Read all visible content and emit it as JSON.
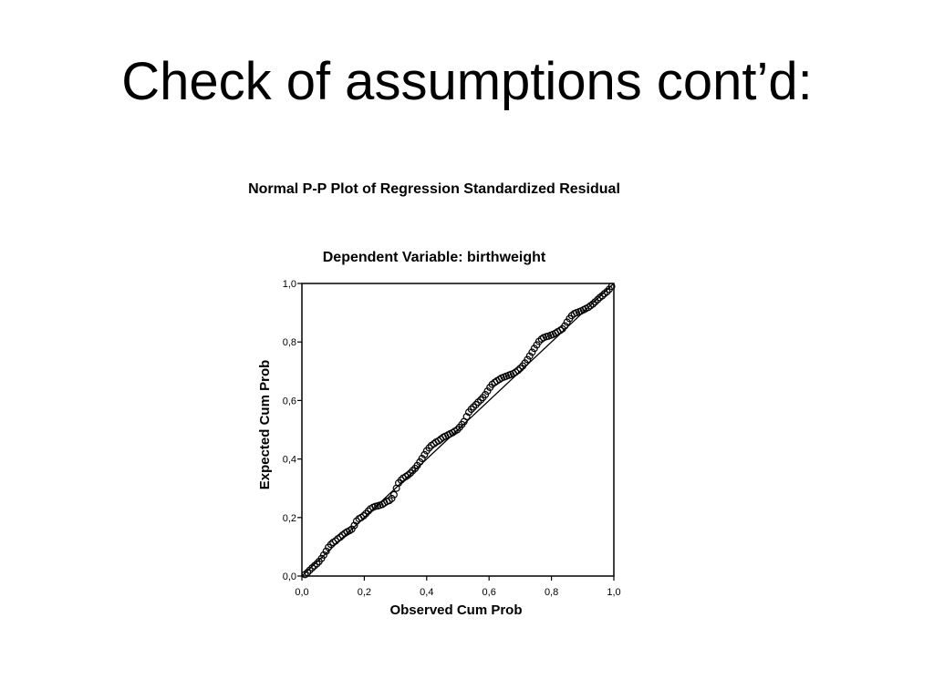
{
  "slide": {
    "title": "Check of assumptions cont’d:"
  },
  "chart_data": {
    "type": "scatter",
    "title": "Normal P-P Plot of Regression Standardized Residual",
    "subtitle": "Dependent Variable: birthweight",
    "xlabel": "Observed Cum Prob",
    "ylabel": "Expected Cum Prob",
    "xlim": [
      0,
      1
    ],
    "ylim": [
      0,
      1
    ],
    "x_ticks": [
      "0,0",
      "0,2",
      "0,4",
      "0,6",
      "0,8",
      "1,0"
    ],
    "y_ticks": [
      "0,0",
      "0,2",
      "0,4",
      "0,6",
      "0,8",
      "1,0"
    ],
    "reference_line": [
      [
        0,
        0
      ],
      [
        1,
        1
      ]
    ],
    "marker": "open-circle",
    "grid": false,
    "series": [
      {
        "points": [
          [
            0.01,
            0.005
          ],
          [
            0.018,
            0.012
          ],
          [
            0.025,
            0.02
          ],
          [
            0.033,
            0.028
          ],
          [
            0.04,
            0.035
          ],
          [
            0.048,
            0.042
          ],
          [
            0.055,
            0.05
          ],
          [
            0.063,
            0.06
          ],
          [
            0.07,
            0.072
          ],
          [
            0.078,
            0.085
          ],
          [
            0.085,
            0.098
          ],
          [
            0.093,
            0.108
          ],
          [
            0.1,
            0.115
          ],
          [
            0.108,
            0.12
          ],
          [
            0.115,
            0.127
          ],
          [
            0.123,
            0.133
          ],
          [
            0.13,
            0.14
          ],
          [
            0.138,
            0.146
          ],
          [
            0.145,
            0.151
          ],
          [
            0.153,
            0.155
          ],
          [
            0.16,
            0.16
          ],
          [
            0.168,
            0.173
          ],
          [
            0.175,
            0.188
          ],
          [
            0.183,
            0.196
          ],
          [
            0.19,
            0.2
          ],
          [
            0.198,
            0.206
          ],
          [
            0.205,
            0.213
          ],
          [
            0.213,
            0.222
          ],
          [
            0.22,
            0.23
          ],
          [
            0.228,
            0.235
          ],
          [
            0.235,
            0.238
          ],
          [
            0.243,
            0.24
          ],
          [
            0.25,
            0.242
          ],
          [
            0.258,
            0.245
          ],
          [
            0.265,
            0.25
          ],
          [
            0.273,
            0.255
          ],
          [
            0.28,
            0.258
          ],
          [
            0.288,
            0.265
          ],
          [
            0.295,
            0.278
          ],
          [
            0.303,
            0.3
          ],
          [
            0.31,
            0.318
          ],
          [
            0.318,
            0.328
          ],
          [
            0.325,
            0.335
          ],
          [
            0.333,
            0.34
          ],
          [
            0.34,
            0.345
          ],
          [
            0.348,
            0.352
          ],
          [
            0.355,
            0.36
          ],
          [
            0.363,
            0.368
          ],
          [
            0.37,
            0.378
          ],
          [
            0.378,
            0.39
          ],
          [
            0.385,
            0.402
          ],
          [
            0.393,
            0.415
          ],
          [
            0.4,
            0.428
          ],
          [
            0.408,
            0.438
          ],
          [
            0.415,
            0.446
          ],
          [
            0.423,
            0.452
          ],
          [
            0.43,
            0.458
          ],
          [
            0.438,
            0.462
          ],
          [
            0.445,
            0.468
          ],
          [
            0.453,
            0.474
          ],
          [
            0.46,
            0.478
          ],
          [
            0.468,
            0.482
          ],
          [
            0.475,
            0.486
          ],
          [
            0.483,
            0.49
          ],
          [
            0.49,
            0.495
          ],
          [
            0.498,
            0.5
          ],
          [
            0.505,
            0.508
          ],
          [
            0.513,
            0.518
          ],
          [
            0.52,
            0.528
          ],
          [
            0.528,
            0.545
          ],
          [
            0.535,
            0.56
          ],
          [
            0.543,
            0.57
          ],
          [
            0.55,
            0.578
          ],
          [
            0.558,
            0.586
          ],
          [
            0.565,
            0.594
          ],
          [
            0.573,
            0.602
          ],
          [
            0.58,
            0.61
          ],
          [
            0.588,
            0.62
          ],
          [
            0.595,
            0.632
          ],
          [
            0.603,
            0.645
          ],
          [
            0.61,
            0.655
          ],
          [
            0.618,
            0.662
          ],
          [
            0.625,
            0.667
          ],
          [
            0.633,
            0.672
          ],
          [
            0.64,
            0.677
          ],
          [
            0.648,
            0.68
          ],
          [
            0.655,
            0.683
          ],
          [
            0.663,
            0.686
          ],
          [
            0.67,
            0.689
          ],
          [
            0.678,
            0.692
          ],
          [
            0.685,
            0.697
          ],
          [
            0.693,
            0.703
          ],
          [
            0.7,
            0.71
          ],
          [
            0.708,
            0.718
          ],
          [
            0.715,
            0.728
          ],
          [
            0.723,
            0.74
          ],
          [
            0.73,
            0.752
          ],
          [
            0.738,
            0.765
          ],
          [
            0.745,
            0.778
          ],
          [
            0.753,
            0.79
          ],
          [
            0.76,
            0.802
          ],
          [
            0.768,
            0.81
          ],
          [
            0.775,
            0.815
          ],
          [
            0.783,
            0.818
          ],
          [
            0.79,
            0.82
          ],
          [
            0.798,
            0.823
          ],
          [
            0.805,
            0.826
          ],
          [
            0.813,
            0.83
          ],
          [
            0.82,
            0.835
          ],
          [
            0.828,
            0.84
          ],
          [
            0.835,
            0.845
          ],
          [
            0.843,
            0.855
          ],
          [
            0.85,
            0.868
          ],
          [
            0.858,
            0.88
          ],
          [
            0.865,
            0.89
          ],
          [
            0.873,
            0.897
          ],
          [
            0.88,
            0.9
          ],
          [
            0.888,
            0.903
          ],
          [
            0.895,
            0.906
          ],
          [
            0.903,
            0.91
          ],
          [
            0.91,
            0.914
          ],
          [
            0.918,
            0.918
          ],
          [
            0.925,
            0.924
          ],
          [
            0.933,
            0.93
          ],
          [
            0.94,
            0.937
          ],
          [
            0.948,
            0.945
          ],
          [
            0.955,
            0.952
          ],
          [
            0.963,
            0.958
          ],
          [
            0.97,
            0.965
          ],
          [
            0.978,
            0.972
          ],
          [
            0.985,
            0.98
          ],
          [
            0.993,
            0.99
          ]
        ]
      }
    ]
  }
}
